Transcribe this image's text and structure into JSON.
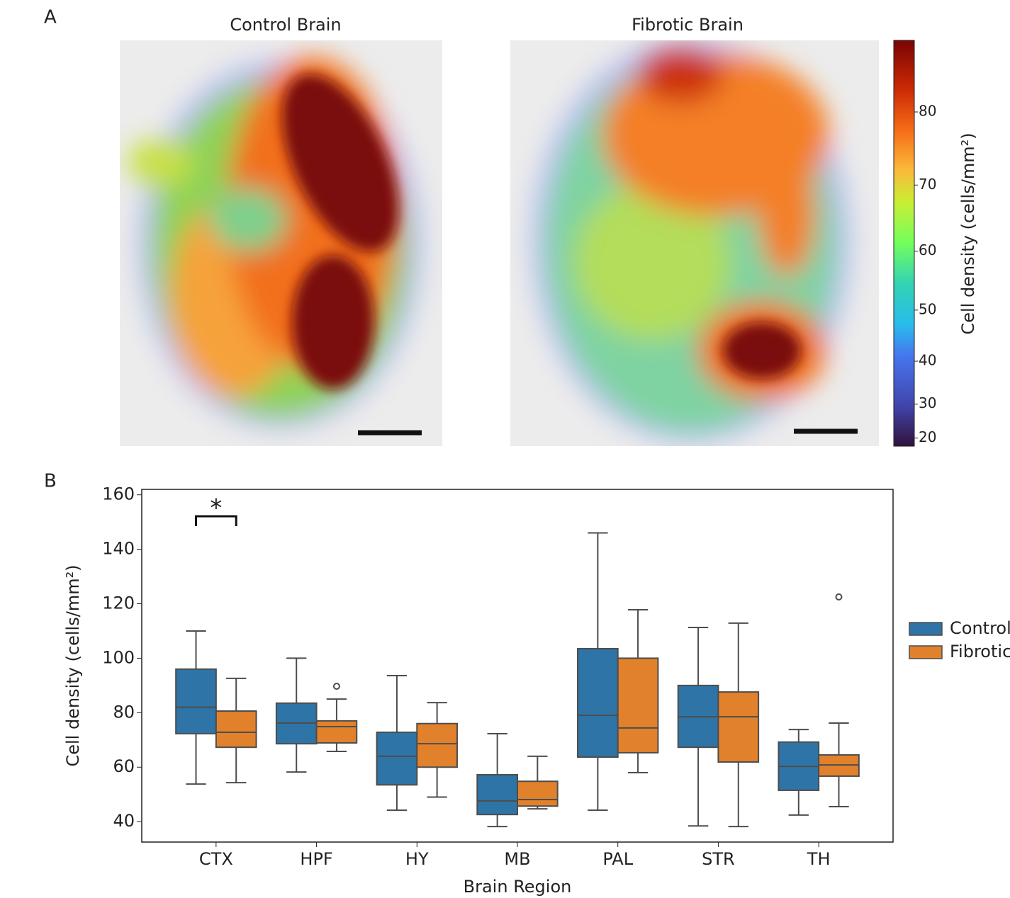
{
  "panel_a": {
    "label": "A",
    "images": [
      {
        "title": "Control Brain"
      },
      {
        "title": "Fibrotic Brain"
      }
    ],
    "colorbar": {
      "label": "Cell density (cells/mm²)",
      "lim": [
        17,
        89
      ],
      "norm_power": 1.7,
      "ticks": [
        20,
        30,
        40,
        50,
        60,
        70,
        80
      ]
    }
  },
  "panel_b_label": "B",
  "chart_data": {
    "type": "box",
    "xlabel": "Brain Region",
    "ylabel": "Cell density (cells/mm²)",
    "categories": [
      "CTX",
      "HPF",
      "HY",
      "MB",
      "PAL",
      "STR",
      "TH"
    ],
    "series": [
      {
        "name": "Control",
        "color": "#2e74a6",
        "whislo": [
          53.8,
          58.2,
          44.2,
          38.2,
          44.2,
          38.4,
          42.4
        ],
        "q1": [
          72.3,
          68.6,
          53.5,
          42.6,
          63.7,
          67.3,
          51.5
        ],
        "median": [
          82,
          76.2,
          64,
          47.6,
          79,
          78.5,
          60.3
        ],
        "q3": [
          96,
          83.5,
          72.8,
          57.2,
          103.5,
          90,
          69.2
        ],
        "whishi": [
          110,
          100,
          93.6,
          72.3,
          146,
          111.3,
          73.8
        ],
        "outliers": [
          [],
          [],
          [],
          [],
          [],
          [],
          []
        ]
      },
      {
        "name": "Fibrotic",
        "color": "#e1812c",
        "whislo": [
          54.3,
          65.8,
          49,
          44.7,
          58,
          38.2,
          45.5
        ],
        "q1": [
          67.3,
          68.9,
          60,
          45.7,
          65.3,
          61.9,
          56.7
        ],
        "median": [
          72.8,
          74.9,
          68.6,
          48.1,
          74.4,
          78.5,
          60.8
        ],
        "q3": [
          80.6,
          77,
          76,
          54.8,
          100,
          87.6,
          64.5
        ],
        "whishi": [
          92.6,
          85,
          83.7,
          64,
          117.8,
          112.9,
          76.2
        ],
        "outliers": [
          [],
          [
            89.7
          ],
          [],
          [],
          [],
          [],
          [
            122.5
          ]
        ]
      }
    ],
    "ylim": [
      32.5,
      162
    ],
    "yticks": [
      40,
      60,
      80,
      100,
      120,
      140,
      160
    ],
    "legend": "right",
    "annotations": [
      {
        "text": "*",
        "category": "CTX"
      }
    ]
  }
}
